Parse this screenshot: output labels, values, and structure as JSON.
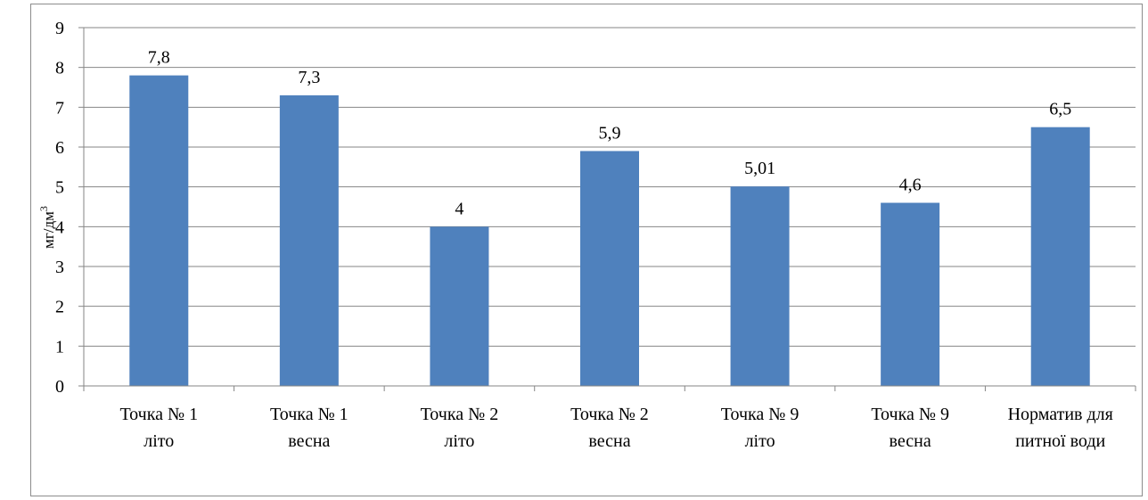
{
  "chart_data": {
    "type": "bar",
    "title": "",
    "xlabel": "",
    "ylabel": "мг/дм",
    "ylabel_superscript": "3",
    "ylim": [
      0,
      9
    ],
    "yticks": [
      "0",
      "1",
      "2",
      "3",
      "4",
      "5",
      "6",
      "7",
      "8",
      "9"
    ],
    "grid": true,
    "legend": "none",
    "bar_color": "#4F81BD",
    "categories": [
      [
        "Точка № 1",
        "літо"
      ],
      [
        "Точка № 1",
        "весна"
      ],
      [
        "Точка № 2",
        "літо"
      ],
      [
        "Точка № 2",
        "весна"
      ],
      [
        "Точка № 9",
        "літо"
      ],
      [
        "Точка № 9",
        "весна"
      ],
      [
        "Норматив для",
        "питної води"
      ]
    ],
    "values": [
      7.8,
      7.3,
      4,
      5.9,
      5.01,
      4.6,
      6.5
    ],
    "data_labels": [
      "7,8",
      "7,3",
      "4",
      "5,9",
      "5,01",
      "4,6",
      "6,5"
    ]
  }
}
